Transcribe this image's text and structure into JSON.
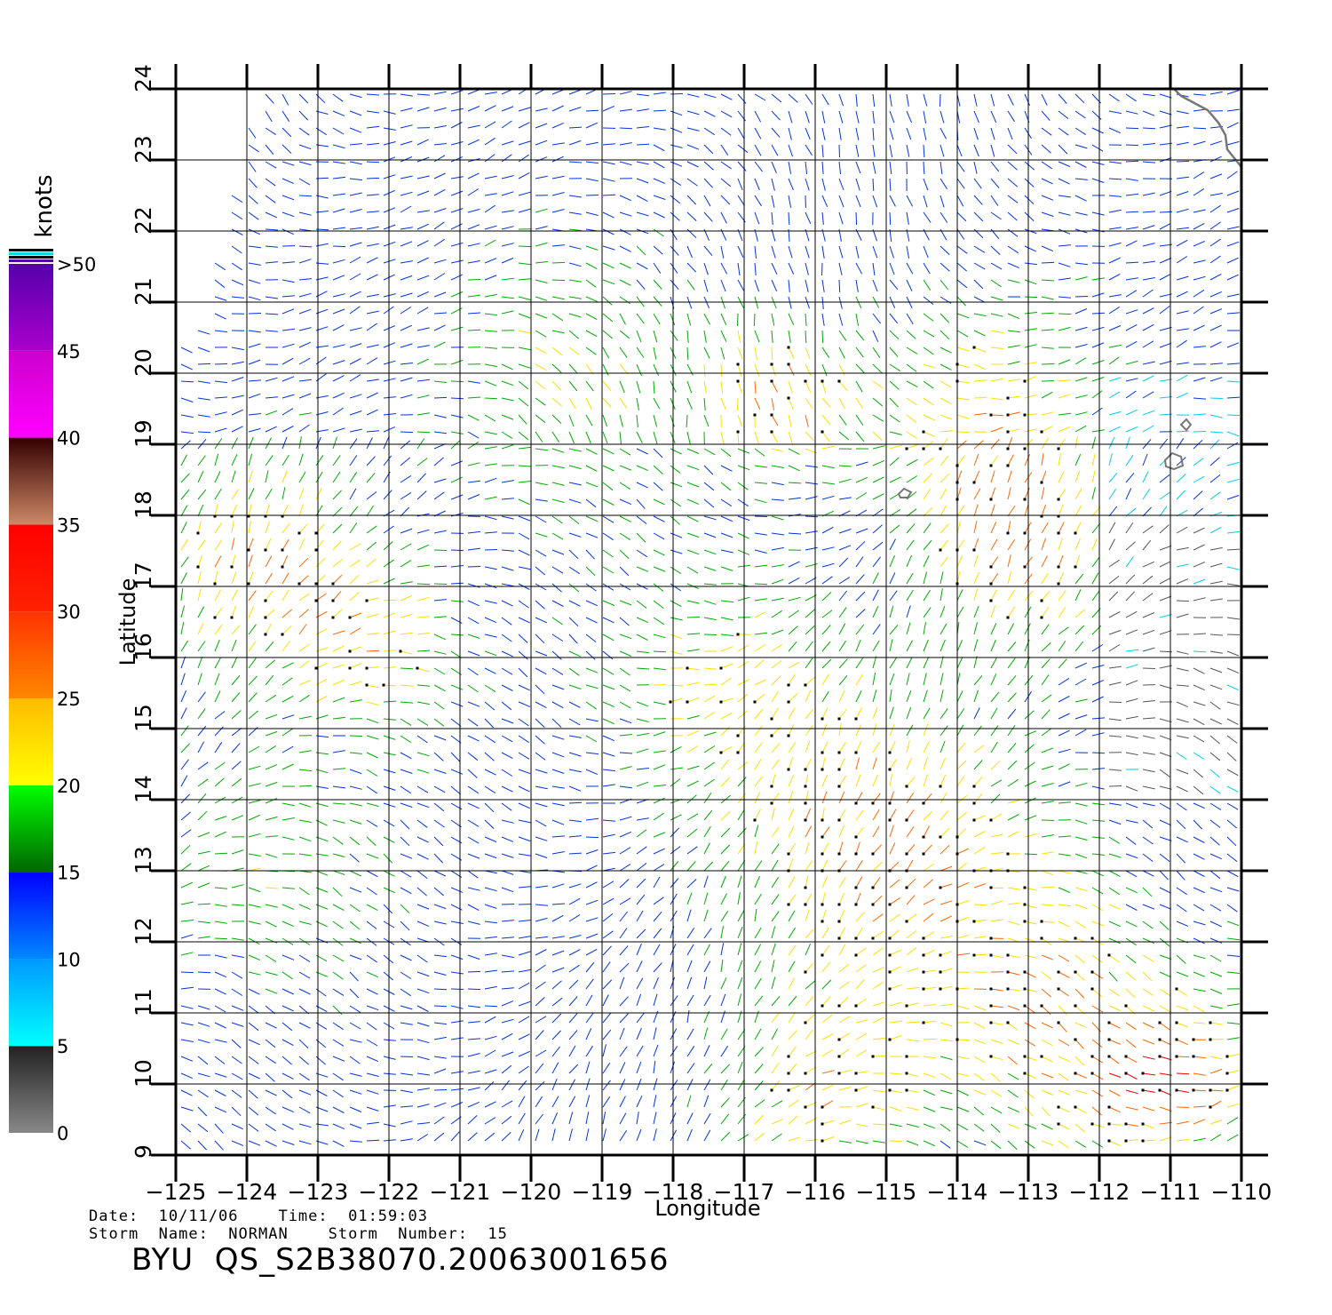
{
  "map": {
    "x_axis_label": "Longitude",
    "y_axis_label": "Latitude",
    "lon_ticks": [
      "-125",
      "-124",
      "-123",
      "-122",
      "-121",
      "-120",
      "-119",
      "-118",
      "-117",
      "-116",
      "-115",
      "-114",
      "-113",
      "-112",
      "-111",
      "-110"
    ],
    "lat_ticks": [
      "9",
      "10",
      "11",
      "12",
      "13",
      "14",
      "15",
      "16",
      "17",
      "18",
      "19",
      "20",
      "21",
      "22",
      "23",
      "24"
    ],
    "lon_range": [
      -125,
      -110
    ],
    "lat_range": [
      9,
      24
    ]
  },
  "colorbar": {
    "unit": "knots",
    "labels": [
      {
        "value": 50,
        "text": ">50"
      },
      {
        "value": 45,
        "text": "45"
      },
      {
        "value": 40,
        "text": "40"
      },
      {
        "value": 35,
        "text": "35"
      },
      {
        "value": 30,
        "text": "30"
      },
      {
        "value": 25,
        "text": "25"
      },
      {
        "value": 20,
        "text": "20"
      },
      {
        "value": 15,
        "text": "15"
      },
      {
        "value": 10,
        "text": "10"
      },
      {
        "value": 5,
        "text": "5"
      },
      {
        "value": 0,
        "text": "0"
      }
    ],
    "bands": [
      {
        "from": 0,
        "to": 5,
        "colors": [
          "#888888",
          "#222222"
        ]
      },
      {
        "from": 5,
        "to": 10,
        "colors": [
          "#00ffff",
          "#0099ff"
        ]
      },
      {
        "from": 10,
        "to": 15,
        "colors": [
          "#0088ff",
          "#0000ff"
        ]
      },
      {
        "from": 15,
        "to": 20,
        "colors": [
          "#006600",
          "#00ff00"
        ]
      },
      {
        "from": 20,
        "to": 25,
        "colors": [
          "#ffff00",
          "#ffbb00"
        ]
      },
      {
        "from": 25,
        "to": 30,
        "colors": [
          "#ff8800",
          "#ff3300"
        ]
      },
      {
        "from": 30,
        "to": 35,
        "colors": [
          "#ff2200",
          "#ff0000"
        ]
      },
      {
        "from": 35,
        "to": 40,
        "colors": [
          "#cc8866",
          "#330000"
        ]
      },
      {
        "from": 40,
        "to": 45,
        "colors": [
          "#ff00ff",
          "#cc00cc"
        ]
      },
      {
        "from": 45,
        "to": 50,
        "colors": [
          "#aa00cc",
          "#5500aa"
        ]
      }
    ]
  },
  "meta": {
    "date_line": "Date:  10/11/06    Time:  01:59:03",
    "storm_line": "Storm  Name:  NORMAN    Storm  Number:  15",
    "product": "BYU  QS_S2B38070.20063001656"
  }
}
